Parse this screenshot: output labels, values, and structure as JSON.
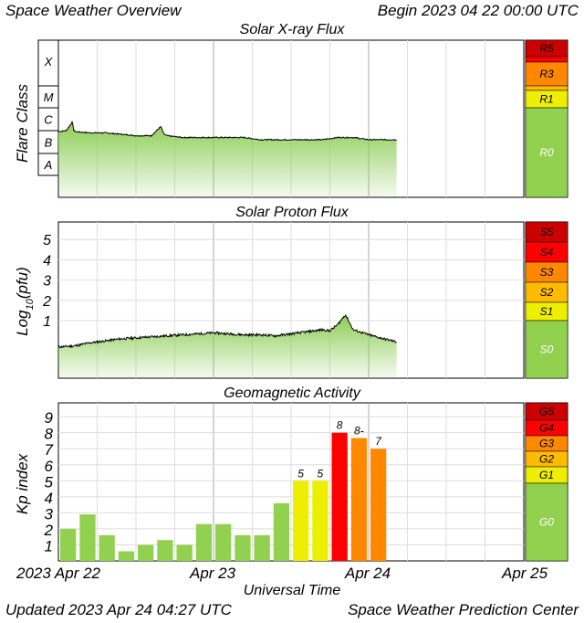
{
  "header": {
    "left": "Space Weather Overview",
    "right": "Begin 2023 04 22 00:00 UTC"
  },
  "footer": {
    "left": "Updated 2023 Apr 24 04:27 UTC",
    "right": "Space Weather Prediction Center"
  },
  "colors": {
    "scale_red_dark": "#cc0000",
    "scale_red": "#ff0000",
    "scale_orange": "#ff8800",
    "scale_yellow_orange": "#ffbb00",
    "scale_yellow": "#eeee00",
    "scale_green": "#92d050",
    "flux_fill": "#8ccd55",
    "kp_green": "#92d050",
    "kp_yellow": "#eeee00",
    "kp_red": "#ff0000",
    "kp_orange": "#ff8800",
    "grid": "#dddddd"
  },
  "x_axis": {
    "label": "Universal Time",
    "tick_labels": [
      "2023 Apr 22",
      "Apr 23",
      "Apr 24",
      "Apr 25"
    ]
  },
  "chart_data": [
    {
      "type": "area",
      "title": "Solar X-ray Flux",
      "ylabel": "Flare Class",
      "classes": [
        "X",
        "M",
        "C",
        "B",
        "A"
      ],
      "scale_labels": [
        "R5",
        "R3",
        "R1",
        "R0"
      ],
      "x_range_days": [
        0,
        3
      ],
      "data_extent_days": [
        0,
        2.18
      ],
      "level_class": "B",
      "series": [
        {
          "x": [
            0,
            0.05,
            0.09,
            0.1,
            0.11,
            0.2,
            0.3,
            0.4,
            0.5,
            0.6,
            0.66,
            0.68,
            0.7,
            0.8,
            0.9,
            1.0,
            1.1,
            1.2,
            1.3,
            1.4,
            1.5,
            1.6,
            1.7,
            1.8,
            1.9,
            2.0,
            2.1,
            2.18
          ],
          "y": [
            "B9",
            "C1",
            "C2.4",
            "C1",
            "B9",
            "B8",
            "B8",
            "B7",
            "B6",
            "B6",
            "C1.5",
            "B7",
            "B6",
            "B5",
            "B5",
            "B5",
            "B5",
            "B5",
            "B4",
            "B4",
            "B4",
            "B4",
            "B4",
            "B5",
            "B5",
            "B4",
            "B4",
            "B4"
          ]
        }
      ]
    },
    {
      "type": "area",
      "title": "Solar Proton Flux",
      "ylabel": "Log10(pfu)",
      "yticks": [
        "1",
        "2",
        "3",
        "4",
        "5"
      ],
      "ylim": [
        -1.5,
        6
      ],
      "scale_labels": [
        "S5",
        "S4",
        "S3",
        "S2",
        "S1",
        "S0"
      ],
      "series": [
        {
          "x": [
            0,
            0.1,
            0.2,
            0.3,
            0.4,
            0.5,
            0.6,
            0.7,
            0.8,
            0.9,
            1.0,
            1.1,
            1.2,
            1.3,
            1.4,
            1.5,
            1.6,
            1.7,
            1.75,
            1.8,
            1.85,
            1.9,
            2.0,
            2.1,
            2.18
          ],
          "y": [
            -0.3,
            -0.25,
            -0.1,
            0.0,
            0.1,
            0.15,
            0.2,
            0.25,
            0.3,
            0.35,
            0.4,
            0.35,
            0.3,
            0.3,
            0.25,
            0.35,
            0.45,
            0.55,
            0.5,
            0.8,
            1.3,
            0.55,
            0.3,
            0.1,
            -0.05
          ]
        }
      ]
    },
    {
      "type": "bar",
      "title": "Geomagnetic Activity",
      "ylabel": "Kp index",
      "yticks": [
        "1",
        "2",
        "3",
        "4",
        "5",
        "6",
        "7",
        "8",
        "9"
      ],
      "ylim": [
        0,
        9.7
      ],
      "scale_labels": [
        "G5",
        "G4",
        "G3",
        "G2",
        "G1",
        "G0"
      ],
      "bar_width_days": 0.125,
      "values": [
        2.0,
        2.9,
        1.6,
        0.6,
        1.0,
        1.3,
        1.0,
        2.3,
        2.3,
        1.6,
        1.6,
        3.6,
        5.0,
        5.0,
        8.0,
        7.67,
        7.0
      ],
      "labels": [
        "",
        "",
        "",
        "",
        "",
        "",
        "",
        "",
        "",
        "",
        "",
        "",
        "5",
        "5",
        "8",
        "8-",
        "7"
      ]
    }
  ]
}
